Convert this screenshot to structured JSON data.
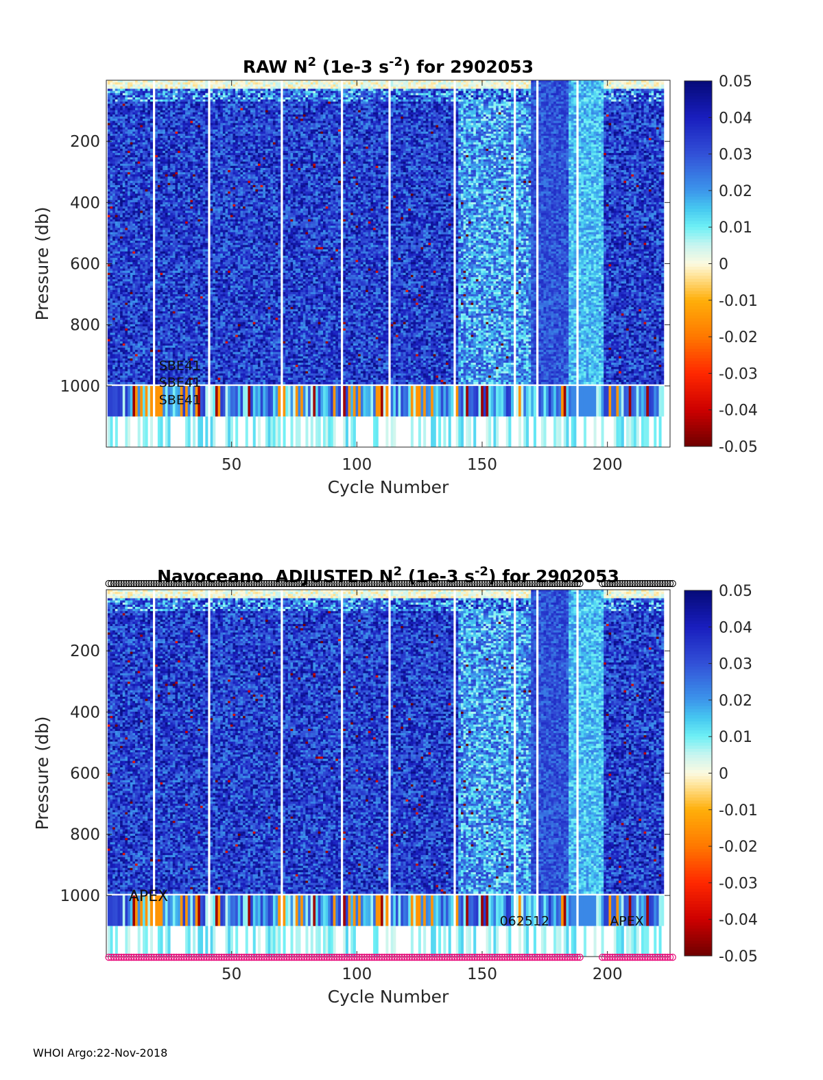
{
  "chart_data": [
    {
      "type": "heatmap",
      "title": {
        "prefix": "RAW N",
        "sup1": "2",
        "mid": " (1e-3 s",
        "sup2": "-2",
        "suffix": ") for 2902053"
      },
      "xlabel": "Cycle Number",
      "ylabel": "Pressure (db)",
      "xlim": [
        0,
        225
      ],
      "ylim": [
        1200,
        0
      ],
      "xticks": [
        50,
        100,
        150,
        200
      ],
      "yticks": [
        200,
        400,
        600,
        800,
        1000
      ],
      "colorbar": {
        "min": -0.05,
        "max": 0.05,
        "ticks": [
          "0.05",
          "0.04",
          "0.03",
          "0.02",
          "0.01",
          "0",
          "-0.01",
          "-0.02",
          "-0.03",
          "-0.04",
          "-0.05"
        ]
      },
      "annotations": [
        {
          "text": "SBE41",
          "x": 21,
          "p": 930
        },
        {
          "text": "SBE41",
          "x": 21,
          "p": 985
        },
        {
          "text": "SBE41",
          "x": 21,
          "p": 1042
        }
      ],
      "show_markers": false
    },
    {
      "type": "heatmap",
      "title": {
        "prefix": "Navoceano  ADJUSTED N",
        "sup1": "2",
        "mid": " (1e-3 s",
        "sup2": "-2",
        "suffix": ") for 2902053"
      },
      "xlabel": "Cycle Number",
      "ylabel": "Pressure (db)",
      "xlim": [
        0,
        225
      ],
      "ylim": [
        1200,
        0
      ],
      "xticks": [
        50,
        100,
        150,
        200
      ],
      "yticks": [
        200,
        400,
        600,
        800,
        1000
      ],
      "colorbar": {
        "min": -0.05,
        "max": 0.05,
        "ticks": [
          "0.05",
          "0.04",
          "0.03",
          "0.02",
          "0.01",
          "0",
          "-0.01",
          "-0.02",
          "-0.03",
          "-0.04",
          "-0.05"
        ]
      },
      "annotations": [
        {
          "text": "APEX",
          "x": 9,
          "p": 1000
        },
        {
          "text": "062512",
          "x": 157,
          "p": 1080
        },
        {
          "text": "APEX",
          "x": 201,
          "p": 1080
        }
      ],
      "show_markers": true,
      "marker_top_color": "#000000",
      "marker_bottom_color": "#e8157f"
    }
  ],
  "gap_cycles": [
    19,
    41,
    70,
    94,
    113,
    139,
    163,
    172,
    188
  ],
  "footer": "WHOI Argo:22-Nov-2018"
}
